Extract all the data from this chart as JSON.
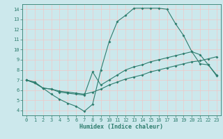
{
  "title": "",
  "xlabel": "Humidex (Indice chaleur)",
  "bg_color": "#cce8ec",
  "line_color": "#2e7d6e",
  "grid_color": "#f0c8c8",
  "xlim": [
    -0.5,
    23.5
  ],
  "ylim": [
    3.5,
    14.5
  ],
  "xticks": [
    0,
    1,
    2,
    3,
    4,
    5,
    6,
    7,
    8,
    9,
    10,
    11,
    12,
    13,
    14,
    15,
    16,
    17,
    18,
    19,
    20,
    21,
    22,
    23
  ],
  "yticks": [
    4,
    5,
    6,
    7,
    8,
    9,
    10,
    11,
    12,
    13,
    14
  ],
  "line1_x": [
    0,
    1,
    2,
    3,
    4,
    5,
    6,
    7,
    8,
    9,
    10,
    11,
    12,
    13,
    14,
    15,
    16,
    17,
    18,
    19,
    20,
    21,
    22,
    23
  ],
  "line1_y": [
    7.0,
    6.8,
    6.2,
    5.6,
    5.1,
    4.7,
    4.4,
    3.9,
    4.6,
    8.0,
    10.8,
    12.8,
    13.4,
    14.1,
    14.1,
    14.1,
    14.1,
    14.0,
    12.6,
    11.4,
    9.8,
    8.6,
    8.5,
    7.4
  ],
  "line2_x": [
    0,
    1,
    2,
    3,
    4,
    5,
    6,
    7,
    8,
    9,
    10,
    11,
    12,
    13,
    14,
    15,
    16,
    17,
    18,
    19,
    20,
    21,
    22,
    23
  ],
  "line2_y": [
    7.0,
    6.7,
    6.2,
    6.1,
    5.8,
    5.7,
    5.6,
    5.5,
    7.8,
    6.5,
    7.0,
    7.5,
    8.0,
    8.3,
    8.5,
    8.8,
    9.0,
    9.2,
    9.4,
    9.6,
    9.8,
    9.5,
    8.5,
    7.5
  ],
  "line3_x": [
    0,
    1,
    2,
    3,
    4,
    5,
    6,
    7,
    8,
    9,
    10,
    11,
    12,
    13,
    14,
    15,
    16,
    17,
    18,
    19,
    20,
    21,
    22,
    23
  ],
  "line3_y": [
    7.0,
    6.7,
    6.2,
    6.1,
    5.9,
    5.8,
    5.7,
    5.6,
    5.8,
    6.1,
    6.5,
    6.8,
    7.1,
    7.3,
    7.5,
    7.8,
    8.0,
    8.2,
    8.4,
    8.6,
    8.8,
    8.9,
    9.1,
    9.3
  ],
  "xlabel_fontsize": 6,
  "tick_fontsize": 5,
  "marker_size": 2.0,
  "line_width": 0.8
}
